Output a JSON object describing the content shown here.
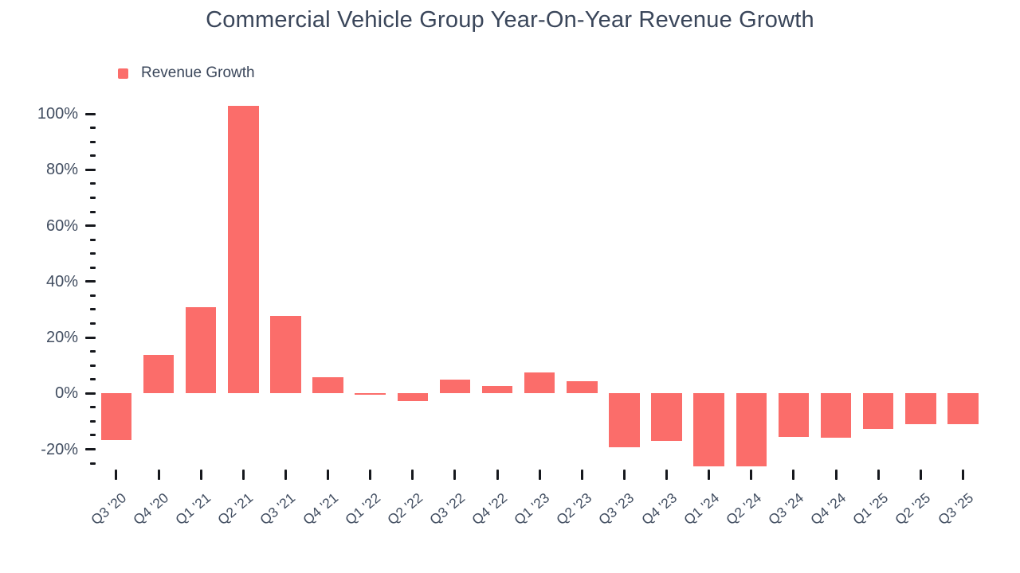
{
  "header": {
    "title": "Commercial Vehicle Group Year-On-Year Revenue Growth"
  },
  "legend": {
    "items": [
      {
        "label": "Revenue Growth",
        "color": "#fb6d6a"
      }
    ]
  },
  "colors": {
    "bar": "#fb6d6a",
    "title_text": "#3a465a",
    "axis_label_text": "#414d60",
    "tick_mark": "#16181d",
    "background": "#ffffff"
  },
  "chart_data": {
    "type": "bar",
    "title": "Commercial Vehicle Group Year-On-Year Revenue Growth",
    "unit": "%",
    "categories": [
      "Q3 '20",
      "Q4 '20",
      "Q1 '21",
      "Q2 '21",
      "Q3 '21",
      "Q4 '21",
      "Q1 '22",
      "Q2 '22",
      "Q3 '22",
      "Q4 '22",
      "Q1 '23",
      "Q2 '23",
      "Q3 '23",
      "Q4 '23",
      "Q1 '24",
      "Q2 '24",
      "Q3 '24",
      "Q4 '24",
      "Q1 '25",
      "Q2 '25",
      "Q3 '25"
    ],
    "series": [
      {
        "name": "Revenue Growth",
        "values": [
          -16.6,
          13.8,
          30.9,
          103.0,
          27.6,
          5.8,
          -0.4,
          -2.8,
          4.9,
          2.6,
          7.4,
          4.3,
          -19.2,
          -17.1,
          -26.0,
          -26.0,
          -15.7,
          -15.9,
          -12.8,
          -11.1,
          -11.0
        ]
      }
    ],
    "xlabel": "",
    "ylabel": "",
    "y_axis": {
      "major_tick_labels": [
        "100%",
        "80%",
        "60%",
        "40%",
        "20%",
        "0%",
        "-20%"
      ],
      "major_tick_values": [
        100,
        80,
        60,
        40,
        20,
        0,
        -20
      ],
      "minor_tick_step": 5,
      "range_min": -25,
      "range_max": 100
    },
    "grid": false,
    "legend_position": "top-left"
  }
}
